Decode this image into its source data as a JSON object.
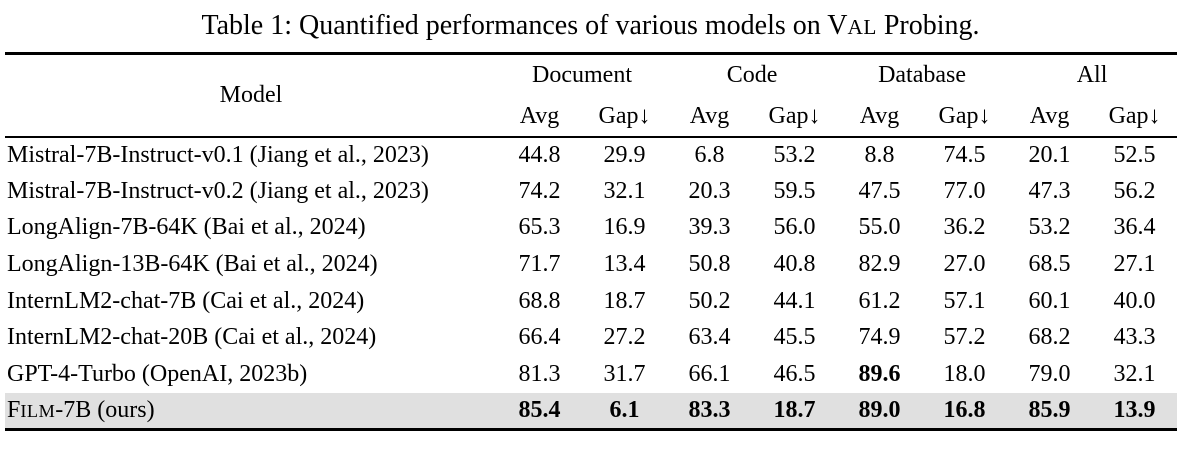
{
  "caption": {
    "pre": "Table 1: Quantified performances of various models on ",
    "smallcaps_cap": "V",
    "smallcaps_small": "AL",
    "post": " Probing."
  },
  "colors": {
    "highlight_row_bg": "#e0e0e0",
    "rule": "#000000",
    "text": "#000000",
    "background": "#ffffff"
  },
  "table": {
    "model_header": "Model",
    "groups": [
      {
        "label": "Document"
      },
      {
        "label": "Code"
      },
      {
        "label": "Database"
      },
      {
        "label": "All"
      }
    ],
    "subheaders": {
      "avg": "Avg",
      "gap": "Gap↓"
    },
    "rows": [
      {
        "model": "Mistral-7B-Instruct-v0.1 (Jiang et al., 2023)",
        "values": [
          "44.8",
          "29.9",
          "6.8",
          "53.2",
          "8.8",
          "74.5",
          "20.1",
          "52.5"
        ],
        "bold": [],
        "highlight": false
      },
      {
        "model": "Mistral-7B-Instruct-v0.2 (Jiang et al., 2023)",
        "values": [
          "74.2",
          "32.1",
          "20.3",
          "59.5",
          "47.5",
          "77.0",
          "47.3",
          "56.2"
        ],
        "bold": [],
        "highlight": false
      },
      {
        "model": "LongAlign-7B-64K (Bai et al., 2024)",
        "values": [
          "65.3",
          "16.9",
          "39.3",
          "56.0",
          "55.0",
          "36.2",
          "53.2",
          "36.4"
        ],
        "bold": [],
        "highlight": false
      },
      {
        "model": "LongAlign-13B-64K (Bai et al., 2024)",
        "values": [
          "71.7",
          "13.4",
          "50.8",
          "40.8",
          "82.9",
          "27.0",
          "68.5",
          "27.1"
        ],
        "bold": [],
        "highlight": false
      },
      {
        "model": "InternLM2-chat-7B (Cai et al., 2024)",
        "values": [
          "68.8",
          "18.7",
          "50.2",
          "44.1",
          "61.2",
          "57.1",
          "60.1",
          "40.0"
        ],
        "bold": [],
        "highlight": false
      },
      {
        "model": "InternLM2-chat-20B (Cai et al., 2024)",
        "values": [
          "66.4",
          "27.2",
          "63.4",
          "45.5",
          "74.9",
          "57.2",
          "68.2",
          "43.3"
        ],
        "bold": [],
        "highlight": false
      },
      {
        "model": "GPT-4-Turbo (OpenAI, 2023b)",
        "values": [
          "81.3",
          "31.7",
          "66.1",
          "46.5",
          "89.6",
          "18.0",
          "79.0",
          "32.1"
        ],
        "bold": [
          4
        ],
        "highlight": false
      },
      {
        "model_parts": {
          "cap": "F",
          "smallcaps": "ILM",
          "rest": "-7B (ours)"
        },
        "values": [
          "85.4",
          "6.1",
          "83.3",
          "18.7",
          "89.0",
          "16.8",
          "85.9",
          "13.9"
        ],
        "bold": [
          0,
          1,
          2,
          3,
          4,
          5,
          6,
          7
        ],
        "highlight": true
      }
    ]
  }
}
